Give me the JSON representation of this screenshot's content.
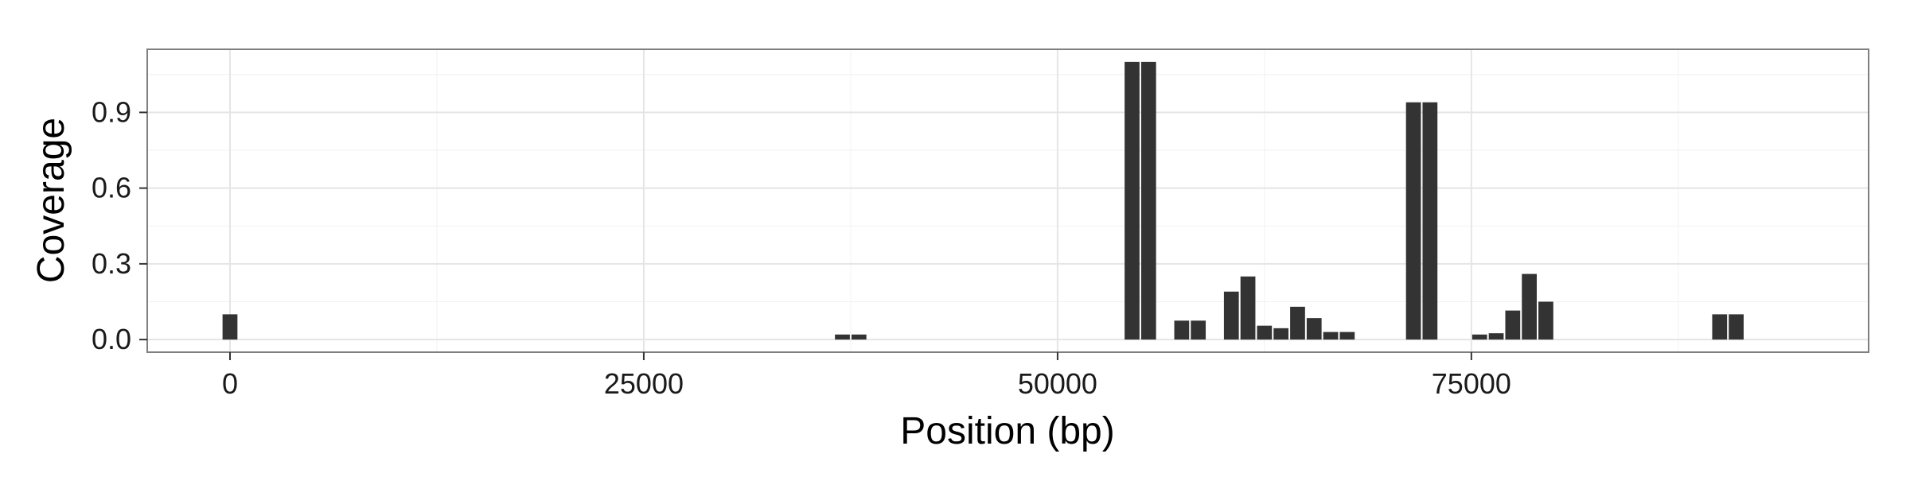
{
  "chart_data": {
    "type": "bar",
    "xlabel": "Position (bp)",
    "ylabel": "Coverage",
    "xlim": [
      -5000,
      99000
    ],
    "ylim": [
      -0.05,
      1.15
    ],
    "x_ticks": [
      0,
      25000,
      50000,
      75000
    ],
    "x_tick_labels": [
      "0",
      "25000",
      "50000",
      "75000"
    ],
    "y_ticks": [
      0.0,
      0.3,
      0.6,
      0.9
    ],
    "y_tick_labels": [
      "0.0",
      "0.3",
      "0.6",
      "0.9"
    ],
    "grid": true,
    "bar_width": 900,
    "bar_color": "#333333",
    "x": [
      0,
      37000,
      38000,
      54500,
      55500,
      57500,
      58500,
      60500,
      61500,
      62500,
      63500,
      64500,
      65500,
      66500,
      67500,
      71500,
      72500,
      75500,
      76500,
      77500,
      78500,
      79500,
      90000,
      91000
    ],
    "values": [
      0.1,
      0.02,
      0.02,
      1.1,
      1.1,
      0.075,
      0.075,
      0.19,
      0.25,
      0.055,
      0.045,
      0.13,
      0.085,
      0.03,
      0.03,
      0.94,
      0.94,
      0.02,
      0.025,
      0.115,
      0.26,
      0.15,
      0.1,
      0.1
    ]
  }
}
